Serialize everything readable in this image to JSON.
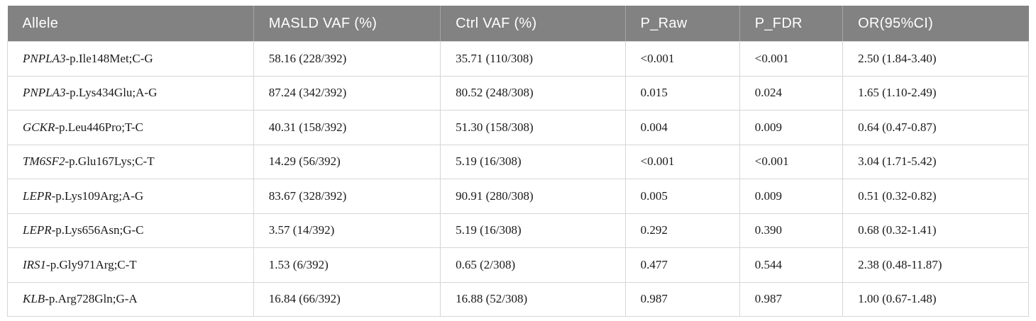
{
  "colors": {
    "header_background": "#828282",
    "header_text": "#ffffff",
    "header_separator": "#a5a5a5",
    "grid_line": "#d6d6d6",
    "body_text": "#1a1a1a",
    "page_background": "#ffffff"
  },
  "table": {
    "columns": [
      {
        "key": "allele",
        "label": "Allele"
      },
      {
        "key": "masld_vaf",
        "label": "MASLD VAF (%)"
      },
      {
        "key": "ctrl_vaf",
        "label": "Ctrl VAF (%)"
      },
      {
        "key": "p_raw",
        "label": "P_Raw"
      },
      {
        "key": "p_fdr",
        "label": "P_FDR"
      },
      {
        "key": "or_ci",
        "label": "OR(95%CI)"
      }
    ],
    "rows": [
      {
        "gene": "PNPLA3",
        "variant": "-p.Ile148Met;C-G",
        "masld_vaf": "58.16 (228/392)",
        "ctrl_vaf": "35.71 (110/308)",
        "p_raw": "<0.001",
        "p_fdr": "<0.001",
        "or_ci": "2.50 (1.84-3.40)"
      },
      {
        "gene": "PNPLA3",
        "variant": "-p.Lys434Glu;A-G",
        "masld_vaf": "87.24 (342/392)",
        "ctrl_vaf": "80.52 (248/308)",
        "p_raw": "0.015",
        "p_fdr": "0.024",
        "or_ci": "1.65 (1.10-2.49)"
      },
      {
        "gene": "GCKR",
        "variant": "-p.Leu446Pro;T-C",
        "masld_vaf": "40.31 (158/392)",
        "ctrl_vaf": "51.30 (158/308)",
        "p_raw": "0.004",
        "p_fdr": "0.009",
        "or_ci": "0.64 (0.47-0.87)"
      },
      {
        "gene": "TM6SF2",
        "variant": "-p.Glu167Lys;C-T",
        "masld_vaf": "14.29 (56/392)",
        "ctrl_vaf": "5.19 (16/308)",
        "p_raw": "<0.001",
        "p_fdr": "<0.001",
        "or_ci": "3.04 (1.71-5.42)"
      },
      {
        "gene": "LEPR",
        "variant": "-p.Lys109Arg;A-G",
        "masld_vaf": "83.67 (328/392)",
        "ctrl_vaf": "90.91 (280/308)",
        "p_raw": "0.005",
        "p_fdr": "0.009",
        "or_ci": "0.51 (0.32-0.82)"
      },
      {
        "gene": "LEPR",
        "variant": "-p.Lys656Asn;G-C",
        "masld_vaf": "3.57 (14/392)",
        "ctrl_vaf": "5.19 (16/308)",
        "p_raw": "0.292",
        "p_fdr": "0.390",
        "or_ci": "0.68 (0.32-1.41)"
      },
      {
        "gene": "IRS1",
        "variant": "-p.Gly971Arg;C-T",
        "masld_vaf": "1.53 (6/392)",
        "ctrl_vaf": "0.65 (2/308)",
        "p_raw": "0.477",
        "p_fdr": "0.544",
        "or_ci": "2.38 (0.48-11.87)"
      },
      {
        "gene": "KLB",
        "variant": "-p.Arg728Gln;G-A",
        "masld_vaf": "16.84 (66/392)",
        "ctrl_vaf": "16.88 (52/308)",
        "p_raw": "0.987",
        "p_fdr": "0.987",
        "or_ci": "1.00 (0.67-1.48)"
      }
    ]
  }
}
